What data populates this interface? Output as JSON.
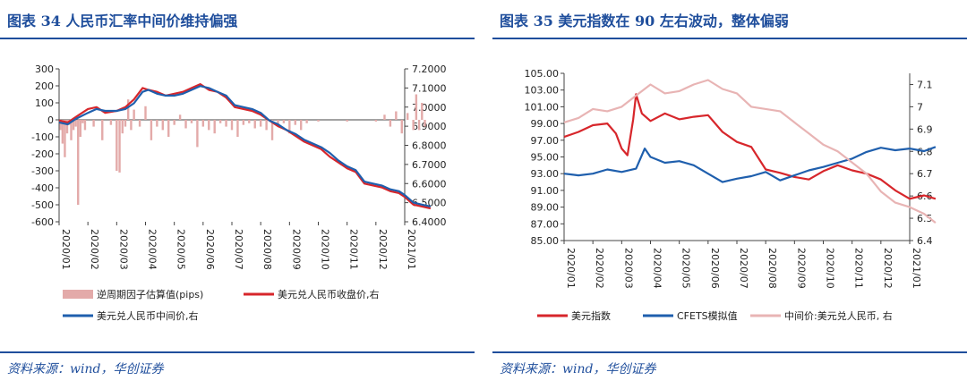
{
  "left": {
    "title": "图表 34   人民币汇率中间价维持偏强",
    "source": "资料来源：wind，华创证券",
    "chart_data": {
      "type": "bar+line",
      "title": "人民币汇率中间价维持偏强",
      "x_tick_labels": [
        "2020/01",
        "2020/02",
        "2020/03",
        "2020/04",
        "2020/05",
        "2020/06",
        "2020/07",
        "2020/08",
        "2020/09",
        "2020/10",
        "2020/11",
        "2020/12",
        "2021/01"
      ],
      "y_left": {
        "ticks": [
          "300",
          "200",
          "100",
          "0",
          "-100",
          "-200",
          "-300",
          "-400",
          "-500",
          "-600"
        ],
        "range": [
          -600,
          300
        ]
      },
      "y_right": {
        "ticks": [
          "7.2000",
          "7.1000",
          "7.0000",
          "6.9000",
          "6.8000",
          "6.7000",
          "6.6000",
          "6.5000",
          "6.4000"
        ],
        "range": [
          6.4,
          7.2
        ]
      },
      "legend": [
        "逆周期因子估算值(pips)",
        "美元兑人民币收盘价,右",
        "美元兑人民币中间价,右"
      ],
      "series": [
        {
          "name": "逆周期因子估算值(pips)",
          "axis": "left",
          "kind": "bar",
          "x": [
            0.05,
            0.12,
            0.2,
            0.28,
            0.35,
            0.42,
            0.5,
            0.58,
            0.66,
            0.74,
            0.82,
            0.9,
            1.2,
            1.5,
            1.8,
            2.0,
            2.1,
            2.2,
            2.3,
            2.4,
            2.5,
            2.6,
            2.8,
            3.0,
            3.2,
            3.4,
            3.6,
            3.8,
            4.0,
            4.2,
            4.4,
            4.6,
            4.8,
            5.0,
            5.2,
            5.4,
            5.6,
            5.8,
            6.0,
            6.2,
            6.4,
            6.6,
            6.8,
            7.0,
            7.2,
            7.4,
            7.6,
            7.8,
            8.0,
            8.2,
            8.4,
            8.6,
            9.0,
            10.0,
            11.0,
            11.3,
            11.5,
            11.7,
            11.9,
            12.1,
            12.3,
            12.4,
            12.5,
            12.6,
            12.7
          ],
          "values": [
            -60,
            -140,
            -220,
            -80,
            -30,
            -120,
            -60,
            -40,
            -500,
            -100,
            -20,
            -60,
            -40,
            -120,
            -30,
            -300,
            -310,
            -80,
            -40,
            120,
            -60,
            60,
            -40,
            80,
            -120,
            -40,
            -60,
            -100,
            -30,
            30,
            -50,
            -20,
            -160,
            -40,
            -60,
            -80,
            -20,
            -40,
            -60,
            -100,
            -30,
            -20,
            -50,
            -40,
            -60,
            -120,
            -40,
            -20,
            -80,
            -30,
            -60,
            -20,
            -10,
            -10,
            -10,
            30,
            -40,
            50,
            -80,
            40,
            -60,
            150,
            -60,
            100,
            -40
          ]
        },
        {
          "name": "美元兑人民币收盘价,右",
          "axis": "right",
          "kind": "line",
          "color": "#d7262b",
          "x": [
            0,
            0.3,
            0.6,
            1.0,
            1.3,
            1.6,
            2.0,
            2.3,
            2.6,
            2.9,
            3.1,
            3.4,
            3.7,
            4.0,
            4.3,
            4.6,
            4.9,
            5.2,
            5.5,
            5.8,
            6.1,
            6.4,
            6.7,
            7.0,
            7.3,
            7.6,
            7.9,
            8.2,
            8.5,
            8.8,
            9.1,
            9.4,
            9.7,
            10.0,
            10.3,
            10.6,
            10.9,
            11.2,
            11.5,
            11.8,
            12.0,
            12.3,
            12.6,
            12.9
          ],
          "values": [
            6.93,
            6.92,
            6.95,
            6.99,
            7.0,
            6.97,
            6.98,
            7.0,
            7.04,
            7.1,
            7.09,
            7.08,
            7.06,
            7.07,
            7.08,
            7.1,
            7.12,
            7.09,
            7.08,
            7.05,
            7.0,
            6.99,
            6.98,
            6.96,
            6.93,
            6.9,
            6.88,
            6.85,
            6.82,
            6.8,
            6.78,
            6.74,
            6.71,
            6.68,
            6.66,
            6.6,
            6.59,
            6.58,
            6.56,
            6.55,
            6.53,
            6.49,
            6.48,
            6.47
          ]
        },
        {
          "name": "美元兑人民币中间价,右",
          "axis": "right",
          "kind": "line",
          "color": "#1f5fad",
          "x": [
            0,
            0.3,
            0.6,
            1.0,
            1.3,
            1.6,
            2.0,
            2.3,
            2.6,
            2.9,
            3.1,
            3.4,
            3.7,
            4.0,
            4.3,
            4.6,
            4.9,
            5.2,
            5.5,
            5.8,
            6.1,
            6.4,
            6.7,
            7.0,
            7.3,
            7.6,
            7.9,
            8.2,
            8.5,
            8.8,
            9.1,
            9.4,
            9.7,
            10.0,
            10.3,
            10.6,
            10.9,
            11.2,
            11.5,
            11.8,
            12.0,
            12.3,
            12.6,
            12.9
          ],
          "values": [
            6.92,
            6.91,
            6.94,
            6.97,
            6.99,
            6.98,
            6.98,
            6.99,
            7.02,
            7.08,
            7.09,
            7.07,
            7.06,
            7.06,
            7.07,
            7.09,
            7.11,
            7.1,
            7.08,
            7.06,
            7.01,
            7.0,
            6.99,
            6.97,
            6.93,
            6.91,
            6.88,
            6.86,
            6.83,
            6.81,
            6.79,
            6.76,
            6.72,
            6.69,
            6.67,
            6.61,
            6.6,
            6.59,
            6.57,
            6.56,
            6.54,
            6.5,
            6.49,
            6.48
          ]
        }
      ]
    }
  },
  "right": {
    "title": "图表 35   美元指数在 90 左右波动，整体偏弱",
    "source": "资料来源：wind，华创证券",
    "chart_data": {
      "type": "line",
      "title": "美元指数在90左右波动，整体偏弱",
      "x_tick_labels": [
        "2020/01",
        "2020/02",
        "2020/03",
        "2020/04",
        "2020/05",
        "2020/06",
        "2020/07",
        "2020/08",
        "2020/09",
        "2020/10",
        "2020/11",
        "2020/12",
        "2021/01"
      ],
      "y_left": {
        "ticks": [
          "105.00",
          "103.00",
          "101.00",
          "99.00",
          "97.00",
          "95.00",
          "93.00",
          "91.00",
          "89.00",
          "87.00",
          "85.00"
        ],
        "range": [
          85,
          105
        ]
      },
      "y_right": {
        "ticks": [
          "7.1",
          "7",
          "6.9",
          "6.8",
          "6.7",
          "6.6",
          "6.5",
          "6.4"
        ],
        "range": [
          6.4,
          7.15
        ]
      },
      "legend": [
        "美元指数",
        "CFETS模拟值",
        "中间价:美元兑人民币, 右"
      ],
      "series": [
        {
          "name": "美元指数",
          "axis": "left",
          "color": "#d7262b",
          "x": [
            0,
            0.5,
            1.0,
            1.5,
            1.8,
            2.0,
            2.2,
            2.4,
            2.5,
            2.7,
            3.0,
            3.5,
            4.0,
            4.5,
            5.0,
            5.5,
            6.0,
            6.5,
            7.0,
            7.5,
            8.0,
            8.5,
            9.0,
            9.5,
            10.0,
            10.5,
            11.0,
            11.5,
            12.0,
            12.5,
            12.9
          ],
          "values": [
            97.4,
            98.0,
            98.8,
            99.0,
            97.8,
            96.0,
            95.2,
            99.5,
            102.5,
            100.2,
            99.3,
            100.2,
            99.5,
            99.8,
            100.0,
            98.0,
            96.8,
            96.2,
            93.5,
            93.1,
            92.6,
            92.3,
            93.3,
            94.0,
            93.4,
            93.0,
            92.3,
            91.0,
            90.0,
            90.4,
            90.0
          ]
        },
        {
          "name": "CFETS模拟值",
          "axis": "left",
          "color": "#1f5fad",
          "x": [
            0,
            0.5,
            1.0,
            1.5,
            2.0,
            2.5,
            2.8,
            3.0,
            3.5,
            4.0,
            4.5,
            5.0,
            5.5,
            6.0,
            6.5,
            7.0,
            7.5,
            8.0,
            8.5,
            9.0,
            9.5,
            10.0,
            10.5,
            11.0,
            11.5,
            12.0,
            12.5,
            12.9
          ],
          "values": [
            93.0,
            92.8,
            93.0,
            93.5,
            93.2,
            93.6,
            96.0,
            95.0,
            94.3,
            94.5,
            94.0,
            93.0,
            92.0,
            92.4,
            92.7,
            93.2,
            92.2,
            92.8,
            93.4,
            93.8,
            94.3,
            94.8,
            95.6,
            96.1,
            95.8,
            96.0,
            95.7,
            96.2
          ]
        },
        {
          "name": "中间价:美元兑人民币, 右",
          "axis": "right",
          "color": "#e8b4b4",
          "x": [
            0,
            0.5,
            1.0,
            1.5,
            2.0,
            2.5,
            3.0,
            3.5,
            4.0,
            4.5,
            5.0,
            5.5,
            6.0,
            6.5,
            7.0,
            7.5,
            8.0,
            8.5,
            9.0,
            9.5,
            10.0,
            10.5,
            11.0,
            11.5,
            12.0,
            12.5,
            12.9
          ],
          "values": [
            6.93,
            6.95,
            6.99,
            6.98,
            7.0,
            7.05,
            7.1,
            7.06,
            7.07,
            7.1,
            7.12,
            7.08,
            7.06,
            7.0,
            6.99,
            6.98,
            6.93,
            6.88,
            6.83,
            6.8,
            6.75,
            6.7,
            6.62,
            6.57,
            6.55,
            6.52,
            6.48
          ]
        }
      ]
    }
  }
}
